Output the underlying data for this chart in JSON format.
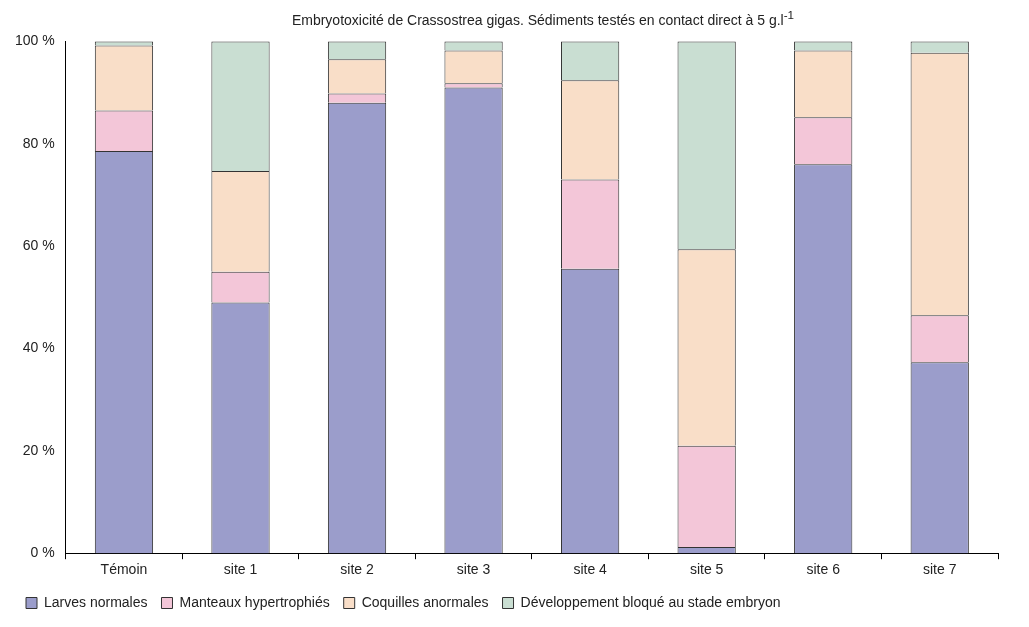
{
  "chart_data": {
    "type": "bar",
    "title": "Embryotoxicité de Crassostrea gigas. Sédiments testés en contact direct à 5 g.l$^{-1}$",
    "categories": [
      "Témoin",
      "site 1",
      "site 2",
      "site 3",
      "site 4",
      "site 5",
      "site 6",
      "site 7"
    ],
    "stacked": true,
    "series": [
      {
        "name": "Larves normales",
        "color": "#9b9dcb",
        "values": [
          78.6,
          49,
          88,
          91,
          55.6,
          1.2,
          76,
          37.3
        ]
      },
      {
        "name": "Manteaux hypertrophiés",
        "color": "#f3c6d8",
        "values": [
          7.9,
          6,
          1.8,
          0.8,
          17.4,
          19.8,
          9.2,
          9.2
        ]
      },
      {
        "name": "Coquilles anormales",
        "color": "#f9dec8",
        "values": [
          12.7,
          19.7,
          6.7,
          6.4,
          19.4,
          38.4,
          13,
          51.3
        ]
      },
      {
        "name": "Développement bloqué au stade embryon",
        "color": "#c9ded2",
        "values": [
          0.8,
          25.3,
          3.5,
          1.8,
          7.6,
          40.6,
          1.8,
          2.2
        ]
      }
    ],
    "ylim": [
      0,
      100
    ],
    "yticks": [
      {
        "value": 0,
        "label": "0 %"
      },
      {
        "value": 20,
        "label": "20 %"
      },
      {
        "value": 40,
        "label": "40 %"
      },
      {
        "value": 60,
        "label": "60 %"
      },
      {
        "value": 80,
        "label": "80 %"
      },
      {
        "value": 100,
        "label": "100 %"
      }
    ],
    "grid": false,
    "legend": "bottom left"
  }
}
